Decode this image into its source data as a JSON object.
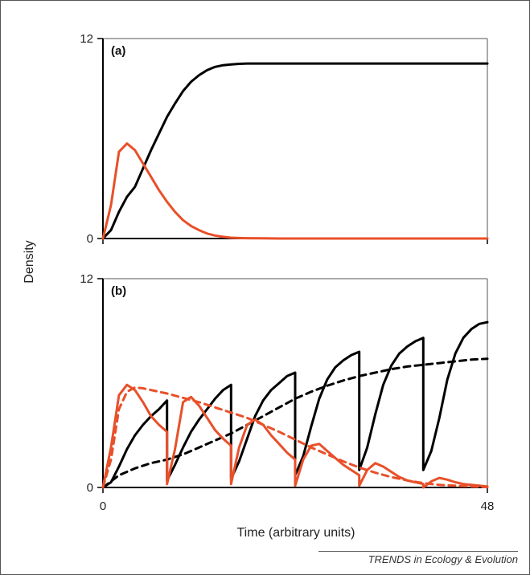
{
  "figure": {
    "ylabel": "Density",
    "xlabel": "Time (arbitrary units)",
    "credit": "TRENDS in Ecology & Evolution",
    "colors": {
      "host": "#000000",
      "parasite": "#e8502a",
      "frame": "#555555"
    }
  },
  "chart_data": [
    {
      "type": "line",
      "panel_label": "(a)",
      "xlim": [
        0,
        48
      ],
      "ylim": [
        0,
        12
      ],
      "yticks": [
        "0",
        "12"
      ],
      "xticks": [],
      "grid": false,
      "series": [
        {
          "color": "#000000",
          "style": "solid",
          "x": [
            0,
            1,
            2,
            3,
            4,
            5,
            6,
            7,
            8,
            9,
            10,
            11,
            12,
            13,
            14,
            15,
            16,
            17,
            18,
            19,
            20,
            21,
            22,
            23,
            24,
            26,
            28,
            30,
            32,
            36,
            40,
            44,
            48
          ],
          "y": [
            0,
            0.5,
            1.6,
            2.5,
            3.1,
            4.2,
            5.3,
            6.3,
            7.3,
            8.1,
            8.85,
            9.4,
            9.8,
            10.1,
            10.3,
            10.4,
            10.45,
            10.48,
            10.5,
            10.5,
            10.5,
            10.5,
            10.5,
            10.5,
            10.5,
            10.5,
            10.5,
            10.5,
            10.5,
            10.5,
            10.5,
            10.5,
            10.5
          ]
        },
        {
          "color": "#e8502a",
          "style": "solid",
          "x": [
            0,
            1,
            2,
            3,
            4,
            5,
            6,
            7,
            8,
            9,
            10,
            11,
            12,
            13,
            14,
            15,
            16,
            17,
            18,
            20,
            22,
            24,
            28,
            32,
            36,
            40,
            44,
            48
          ],
          "y": [
            0,
            2.0,
            5.2,
            5.7,
            5.3,
            4.5,
            3.7,
            2.9,
            2.2,
            1.6,
            1.1,
            0.75,
            0.5,
            0.3,
            0.18,
            0.1,
            0.05,
            0.03,
            0.02,
            0.01,
            0,
            0,
            0,
            0,
            0,
            0,
            0,
            0
          ]
        }
      ]
    },
    {
      "type": "line",
      "panel_label": "(b)",
      "xlim": [
        0,
        48
      ],
      "ylim": [
        0,
        12
      ],
      "yticks": [
        "0",
        "12"
      ],
      "xticks": [
        "0",
        "48"
      ],
      "grid": false,
      "series": [
        {
          "color": "#000000",
          "style": "solid",
          "x": [
            0,
            1,
            2,
            3,
            4,
            5,
            6,
            7,
            8,
            8,
            9,
            10,
            11,
            12,
            13,
            14,
            15,
            16,
            16,
            17,
            18,
            19,
            20,
            21,
            22,
            23,
            24,
            24,
            25,
            26,
            27,
            28,
            29,
            30,
            31,
            32,
            32,
            33,
            34,
            35,
            36,
            37,
            38,
            39,
            40,
            40,
            41,
            42,
            43,
            44,
            45,
            46,
            47,
            48
          ],
          "y": [
            0,
            0.3,
            1.2,
            2.2,
            3.0,
            3.6,
            4.1,
            4.5,
            5.0,
            0.4,
            1.3,
            2.3,
            3.2,
            3.9,
            4.5,
            5.1,
            5.6,
            5.9,
            0.5,
            1.5,
            2.8,
            4.1,
            5.0,
            5.6,
            6.0,
            6.4,
            6.6,
            0.7,
            1.8,
            3.5,
            5.1,
            6.2,
            6.9,
            7.3,
            7.6,
            7.8,
            1.0,
            2.3,
            4.2,
            5.9,
            7.0,
            7.7,
            8.1,
            8.4,
            8.6,
            1.0,
            2.1,
            4.0,
            6.2,
            7.7,
            8.6,
            9.1,
            9.4,
            9.5
          ]
        },
        {
          "color": "#000000",
          "style": "dashed",
          "x": [
            0,
            2,
            4,
            6,
            8,
            10,
            12,
            14,
            16,
            18,
            20,
            22,
            24,
            26,
            28,
            30,
            32,
            34,
            36,
            38,
            40,
            42,
            44,
            46,
            48
          ],
          "y": [
            0,
            0.7,
            1.1,
            1.4,
            1.6,
            1.9,
            2.3,
            2.7,
            3.1,
            3.6,
            4.1,
            4.6,
            5.1,
            5.5,
            5.85,
            6.15,
            6.4,
            6.6,
            6.8,
            6.95,
            7.05,
            7.15,
            7.25,
            7.35,
            7.4
          ]
        },
        {
          "color": "#e8502a",
          "style": "solid",
          "x": [
            0,
            1,
            2,
            3,
            4,
            5,
            6,
            7,
            8,
            8,
            9,
            10,
            11,
            12,
            13,
            14,
            15,
            16,
            16,
            17,
            18,
            19,
            20,
            21,
            22,
            23,
            24,
            24,
            25,
            26,
            27,
            28,
            29,
            30,
            31,
            32,
            32,
            33,
            34,
            35,
            36,
            37,
            38,
            39,
            40,
            40,
            41,
            42,
            43,
            44,
            45,
            46,
            47,
            48
          ],
          "y": [
            0,
            2.3,
            5.3,
            5.9,
            5.6,
            4.9,
            4.1,
            3.6,
            3.2,
            0.2,
            2.2,
            4.9,
            5.2,
            4.7,
            4.0,
            3.3,
            2.8,
            2.4,
            0.2,
            2.3,
            3.6,
            3.9,
            3.6,
            3.0,
            2.5,
            2.0,
            1.6,
            0.1,
            1.6,
            2.4,
            2.5,
            2.1,
            1.7,
            1.3,
            1.0,
            0.7,
            0.1,
            1.0,
            1.4,
            1.2,
            0.9,
            0.6,
            0.4,
            0.3,
            0.2,
            0,
            0.35,
            0.55,
            0.45,
            0.3,
            0.2,
            0.15,
            0.1,
            0.05
          ]
        },
        {
          "color": "#e8502a",
          "style": "dashed",
          "x": [
            0,
            1,
            2,
            3,
            4,
            5,
            6,
            8,
            10,
            12,
            14,
            16,
            18,
            20,
            22,
            24,
            26,
            28,
            30,
            32,
            34,
            36,
            38,
            40,
            42,
            44,
            46,
            48
          ],
          "y": [
            0,
            1.6,
            4.5,
            5.5,
            5.75,
            5.7,
            5.6,
            5.4,
            5.15,
            4.9,
            4.6,
            4.3,
            4.0,
            3.6,
            3.2,
            2.75,
            2.3,
            1.9,
            1.5,
            1.15,
            0.85,
            0.6,
            0.4,
            0.25,
            0.15,
            0.1,
            0.05,
            0.02
          ]
        }
      ]
    }
  ]
}
